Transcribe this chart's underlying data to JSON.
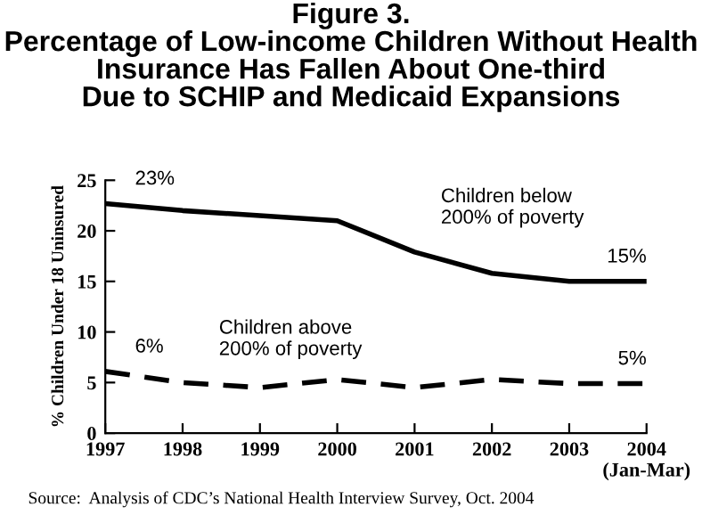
{
  "chart_data": {
    "type": "line",
    "title": "Figure 3.\nPercentage of Low-income Children Without Health\nInsurance Has Fallen About One-third\nDue to SCHIP and Medicaid Expansions",
    "ylabel": "% Children Under 18 Uninsured",
    "categories": [
      "1997",
      "1998",
      "1999",
      "2000",
      "2001",
      "2002",
      "2003",
      "2004\n(Jan-Mar)"
    ],
    "series": [
      {
        "name": "Children below\n200% of poverty",
        "color": "#000000",
        "line_style": "solid",
        "values": [
          22.7,
          22.0,
          21.5,
          21.0,
          17.9,
          15.8,
          15.0,
          15.0
        ],
        "value_labels": [
          "23%",
          null,
          null,
          null,
          null,
          null,
          null,
          "15%"
        ]
      },
      {
        "name": "Children above\n200% of poverty",
        "color": "#000000",
        "line_style": "dashed",
        "values": [
          6.1,
          5.0,
          4.5,
          5.3,
          4.5,
          5.3,
          4.9,
          4.9
        ],
        "value_labels": [
          "6%",
          null,
          null,
          null,
          null,
          null,
          null,
          "5%"
        ]
      }
    ],
    "ylim": [
      0,
      25
    ],
    "yticks": [
      0,
      5,
      10,
      15,
      20,
      25
    ],
    "grid": false,
    "legend": false,
    "marker": "none",
    "annotations": [
      "Source:  Analysis of CDC’s National Health Interview Survey, Oct. 2004"
    ]
  }
}
